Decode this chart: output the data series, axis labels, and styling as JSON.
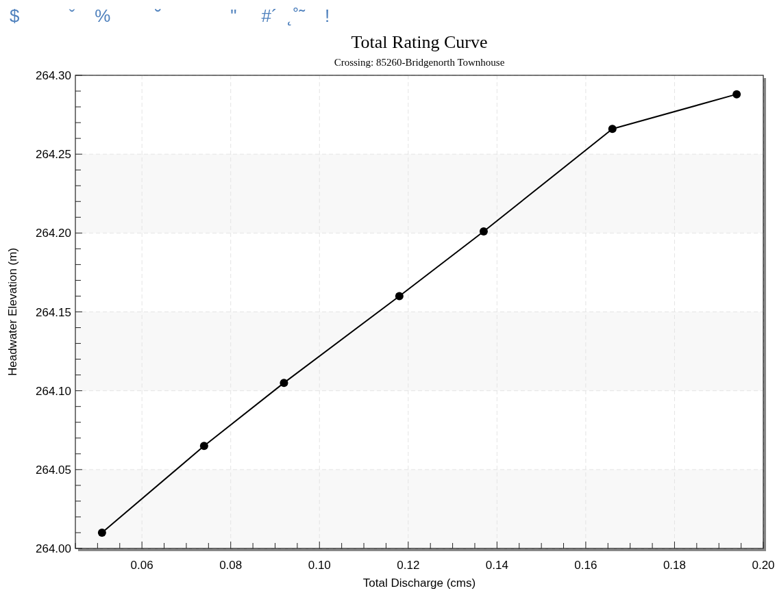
{
  "chart_data": {
    "type": "line",
    "title": "Total Rating Curve",
    "subtitle": "Crossing: 85260-Bridgenorth Townhouse",
    "xlabel": "Total Discharge (cms)",
    "ylabel": "Headwater Elevation (m)",
    "annotations": [
      "$          ˇ    %         ˘              \"     #´  ˛˚˜    !"
    ],
    "x": [
      0.051,
      0.074,
      0.092,
      0.118,
      0.137,
      0.166,
      0.194
    ],
    "series": [
      {
        "color": "#000000",
        "values": [
          264.01,
          264.065,
          264.105,
          264.16,
          264.201,
          264.266,
          264.288
        ]
      }
    ],
    "marker": "circle",
    "line_style": "solid",
    "grid": true,
    "xlim": [
      0.045,
      0.2
    ],
    "ylim": [
      264.0,
      264.3
    ],
    "xticks": [
      {
        "value": 0.045,
        "label": null
      },
      {
        "value": 0.05,
        "label": null
      },
      {
        "value": 0.055,
        "label": null
      },
      {
        "value": 0.06,
        "label": "0.06"
      },
      {
        "value": 0.065,
        "label": null
      },
      {
        "value": 0.07,
        "label": null
      },
      {
        "value": 0.075,
        "label": null
      },
      {
        "value": 0.08,
        "label": "0.08"
      },
      {
        "value": 0.085,
        "label": null
      },
      {
        "value": 0.09,
        "label": null
      },
      {
        "value": 0.095,
        "label": null
      },
      {
        "value": 0.1,
        "label": "0.10"
      },
      {
        "value": 0.105,
        "label": null
      },
      {
        "value": 0.11,
        "label": null
      },
      {
        "value": 0.115,
        "label": null
      },
      {
        "value": 0.12,
        "label": "0.12"
      },
      {
        "value": 0.125,
        "label": null
      },
      {
        "value": 0.13,
        "label": null
      },
      {
        "value": 0.135,
        "label": null
      },
      {
        "value": 0.14,
        "label": "0.14"
      },
      {
        "value": 0.145,
        "label": null
      },
      {
        "value": 0.15,
        "label": null
      },
      {
        "value": 0.155,
        "label": null
      },
      {
        "value": 0.16,
        "label": "0.16"
      },
      {
        "value": 0.165,
        "label": null
      },
      {
        "value": 0.17,
        "label": null
      },
      {
        "value": 0.175,
        "label": null
      },
      {
        "value": 0.18,
        "label": "0.18"
      },
      {
        "value": 0.185,
        "label": null
      },
      {
        "value": 0.19,
        "label": null
      },
      {
        "value": 0.195,
        "label": null
      },
      {
        "value": 0.2,
        "label": "0.20"
      }
    ],
    "yticks": [
      {
        "value": 264.0,
        "label": "264.00"
      },
      {
        "value": 264.01,
        "label": null
      },
      {
        "value": 264.02,
        "label": null
      },
      {
        "value": 264.03,
        "label": null
      },
      {
        "value": 264.04,
        "label": null
      },
      {
        "value": 264.05,
        "label": "264.05"
      },
      {
        "value": 264.06,
        "label": null
      },
      {
        "value": 264.07,
        "label": null
      },
      {
        "value": 264.08,
        "label": null
      },
      {
        "value": 264.09,
        "label": null
      },
      {
        "value": 264.1,
        "label": "264.10"
      },
      {
        "value": 264.11,
        "label": null
      },
      {
        "value": 264.12,
        "label": null
      },
      {
        "value": 264.13,
        "label": null
      },
      {
        "value": 264.14,
        "label": null
      },
      {
        "value": 264.15,
        "label": "264.15"
      },
      {
        "value": 264.16,
        "label": null
      },
      {
        "value": 264.17,
        "label": null
      },
      {
        "value": 264.18,
        "label": null
      },
      {
        "value": 264.19,
        "label": null
      },
      {
        "value": 264.2,
        "label": "264.20"
      },
      {
        "value": 264.21,
        "label": null
      },
      {
        "value": 264.22,
        "label": null
      },
      {
        "value": 264.23,
        "label": null
      },
      {
        "value": 264.24,
        "label": null
      },
      {
        "value": 264.25,
        "label": "264.25"
      },
      {
        "value": 264.26,
        "label": null
      },
      {
        "value": 264.27,
        "label": null
      },
      {
        "value": 264.28,
        "label": null
      },
      {
        "value": 264.29,
        "label": null
      },
      {
        "value": 264.3,
        "label": "264.30"
      }
    ],
    "bands": [
      {
        "axis": "y",
        "from": 264.0,
        "to": 264.05,
        "color": "#f8f8f8"
      },
      {
        "axis": "y",
        "from": 264.1,
        "to": 264.15,
        "color": "#f8f8f8"
      },
      {
        "axis": "y",
        "from": 264.2,
        "to": 264.25,
        "color": "#f8f8f8"
      }
    ]
  }
}
